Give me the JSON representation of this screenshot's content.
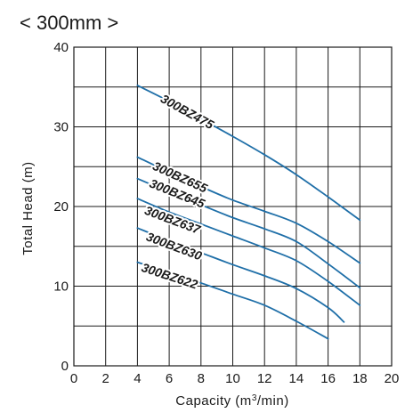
{
  "chart_data": {
    "type": "line",
    "title": "< 300mm >",
    "xlabel": "Capacity (m³/min)",
    "xlabel_parts": [
      "Capacity (m",
      "3",
      "/min)"
    ],
    "ylabel": "Total Head (m)",
    "xlim": [
      0,
      20
    ],
    "ylim": [
      0,
      40
    ],
    "x_ticks": [
      0,
      2,
      4,
      6,
      8,
      10,
      12,
      14,
      16,
      18,
      20
    ],
    "y_ticks": [
      0,
      10,
      20,
      30,
      40
    ],
    "x_tick_labels": [
      "0",
      "2",
      "4",
      "6",
      "8",
      "10",
      "12",
      "14",
      "16",
      "18",
      "20"
    ],
    "y_tick_labels": [
      "0",
      "10",
      "20",
      "30",
      "40"
    ],
    "grid": true,
    "series_color": "#1f6fa8",
    "series": [
      {
        "name": "300BZ475",
        "x": [
          4,
          6,
          8,
          10,
          12,
          14,
          16,
          18
        ],
        "y": [
          35.2,
          33.2,
          31.0,
          28.8,
          26.5,
          24.0,
          21.2,
          18.3
        ],
        "label_at": [
          5.4,
          33.2
        ]
      },
      {
        "name": "300BZ655",
        "x": [
          4,
          6,
          8,
          10,
          12,
          14,
          16,
          18
        ],
        "y": [
          26.2,
          24.3,
          22.5,
          20.8,
          19.4,
          17.9,
          15.6,
          12.9
        ],
        "label_at": [
          4.9,
          24.7
        ]
      },
      {
        "name": "300BZ645",
        "x": [
          4,
          6,
          8,
          10,
          12,
          14,
          16,
          18
        ],
        "y": [
          23.5,
          21.8,
          20.2,
          18.6,
          17.2,
          15.6,
          12.8,
          9.8
        ],
        "label_at": [
          4.7,
          22.5
        ]
      },
      {
        "name": "300BZ637",
        "x": [
          4,
          6,
          8,
          10,
          12,
          14,
          16,
          18
        ],
        "y": [
          21.0,
          19.3,
          17.8,
          16.3,
          14.8,
          13.2,
          10.6,
          7.6
        ],
        "label_at": [
          4.4,
          19.1
        ]
      },
      {
        "name": "300BZ630",
        "x": [
          4,
          6,
          8,
          10,
          12,
          14,
          16,
          17
        ],
        "y": [
          17.3,
          15.7,
          14.2,
          12.7,
          11.3,
          9.7,
          7.3,
          5.5
        ],
        "label_at": [
          4.5,
          15.8
        ]
      },
      {
        "name": "300BZ622",
        "x": [
          4,
          6,
          8,
          10,
          12,
          14,
          16
        ],
        "y": [
          13.0,
          11.7,
          10.4,
          9.0,
          7.6,
          5.6,
          3.4
        ],
        "label_at": [
          4.2,
          11.9
        ]
      }
    ]
  }
}
